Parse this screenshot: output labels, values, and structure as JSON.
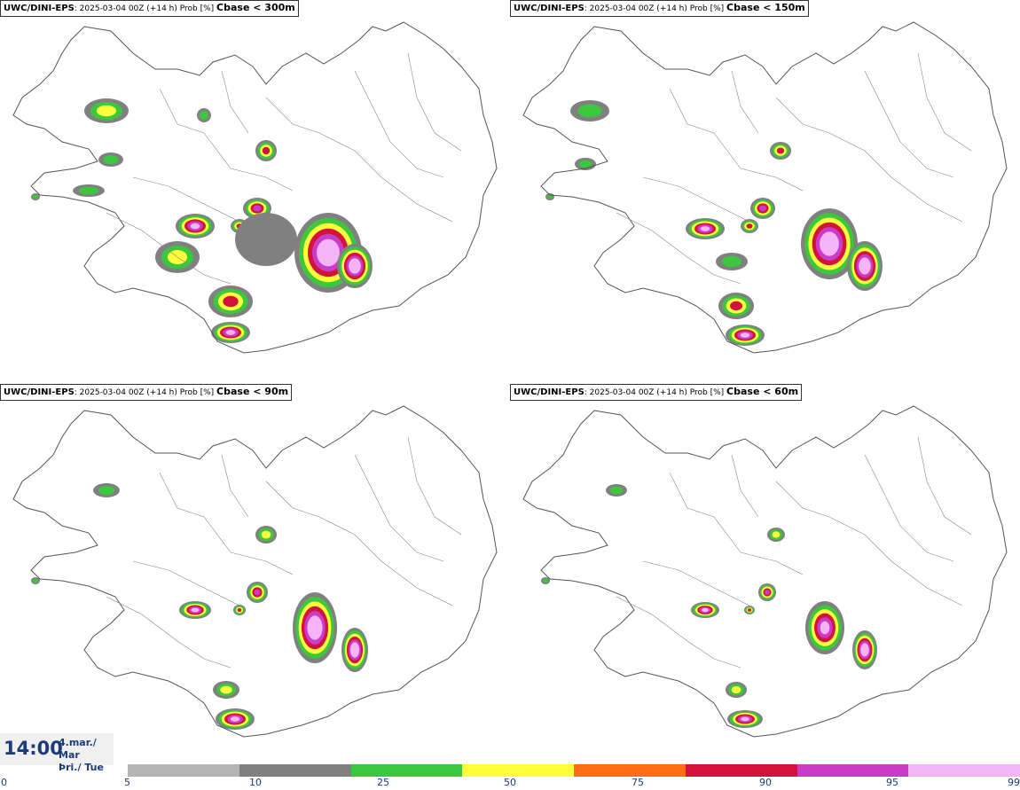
{
  "panels": [
    {
      "model": "UWC/DINI-EPS",
      "subtitle": ": 2025-03-04 00Z (+14 h) Prob [%] ",
      "threshold": "Cbase < 300m"
    },
    {
      "model": "UWC/DINI-EPS",
      "subtitle": ": 2025-03-04 00Z (+14 h) Prob [%] ",
      "threshold": "Cbase < 150m"
    },
    {
      "model": "UWC/DINI-EPS",
      "subtitle": ": 2025-03-04 00Z (+14 h) Prob [%] ",
      "threshold": "Cbase < 90m"
    },
    {
      "model": "UWC/DINI-EPS",
      "subtitle": ": 2025-03-04 00Z (+14 h) Prob [%] ",
      "threshold": "Cbase < 60m"
    }
  ],
  "time_box": {
    "time": "14:00",
    "date_line1": "4.mar./ Mar",
    "date_line2": "Þri./ Tue"
  },
  "colorbar": {
    "colors": [
      "#b4b4b4",
      "#808080",
      "#3cc83c",
      "#ffff3c",
      "#ff6e14",
      "#d2143c",
      "#c83cc8",
      "#f5b4f5"
    ],
    "tick_labels": [
      "0",
      "5",
      "10",
      "25",
      "50",
      "75",
      "90",
      "95",
      "99"
    ]
  },
  "map_colors": {
    "coast": "#555555",
    "gray_light": "#b4b4b4",
    "gray_dark": "#808080",
    "green": "#3cc83c",
    "yellow": "#ffff3c",
    "orange": "#ff6e14",
    "red": "#d2143c",
    "magenta": "#c83cc8",
    "pink": "#f5b4f5"
  }
}
